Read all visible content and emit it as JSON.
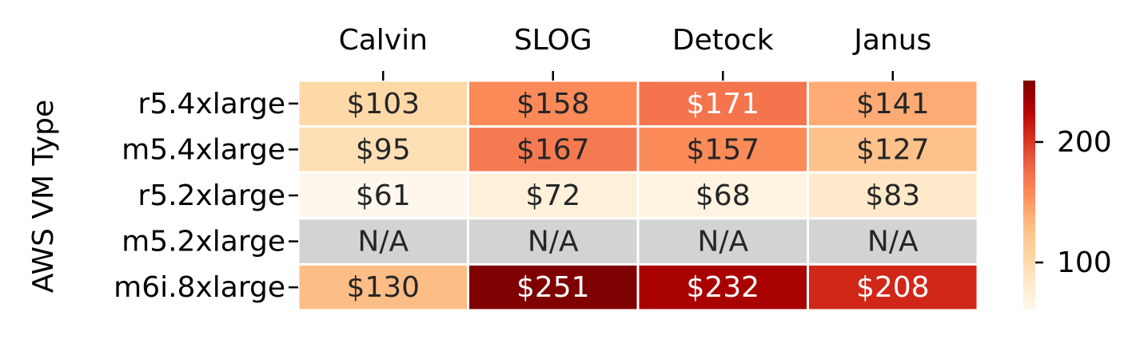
{
  "chart_data": {
    "type": "heatmap",
    "title": "",
    "xlabel": "",
    "ylabel": "AWS VM Type",
    "columns": [
      "Calvin",
      "SLOG",
      "Detock",
      "Janus"
    ],
    "rows": [
      "r5.4xlarge",
      "m5.4xlarge",
      "r5.2xlarge",
      "m5.2xlarge",
      "m6i.8xlarge"
    ],
    "values": [
      [
        103,
        158,
        171,
        141
      ],
      [
        95,
        167,
        157,
        127
      ],
      [
        61,
        72,
        68,
        83
      ],
      [
        null,
        null,
        null,
        null
      ],
      [
        130,
        251,
        232,
        208
      ]
    ],
    "cell_labels": [
      [
        "$103",
        "$158",
        "$171",
        "$141"
      ],
      [
        "$95",
        "$167",
        "$157",
        "$127"
      ],
      [
        "$61",
        "$72",
        "$68",
        "$83"
      ],
      [
        "N/A",
        "N/A",
        "N/A",
        "N/A"
      ],
      [
        "$130",
        "$251",
        "$232",
        "$208"
      ]
    ],
    "missing_label": "N/A",
    "missing_color": "#d3d3d3",
    "colormap": "OrRd",
    "colorbar": {
      "range": [
        61,
        251
      ],
      "ticks": [
        100,
        200
      ],
      "tick_labels": [
        "100",
        "200"
      ],
      "position": "right"
    },
    "x_tick_position": "top",
    "grid": false
  }
}
